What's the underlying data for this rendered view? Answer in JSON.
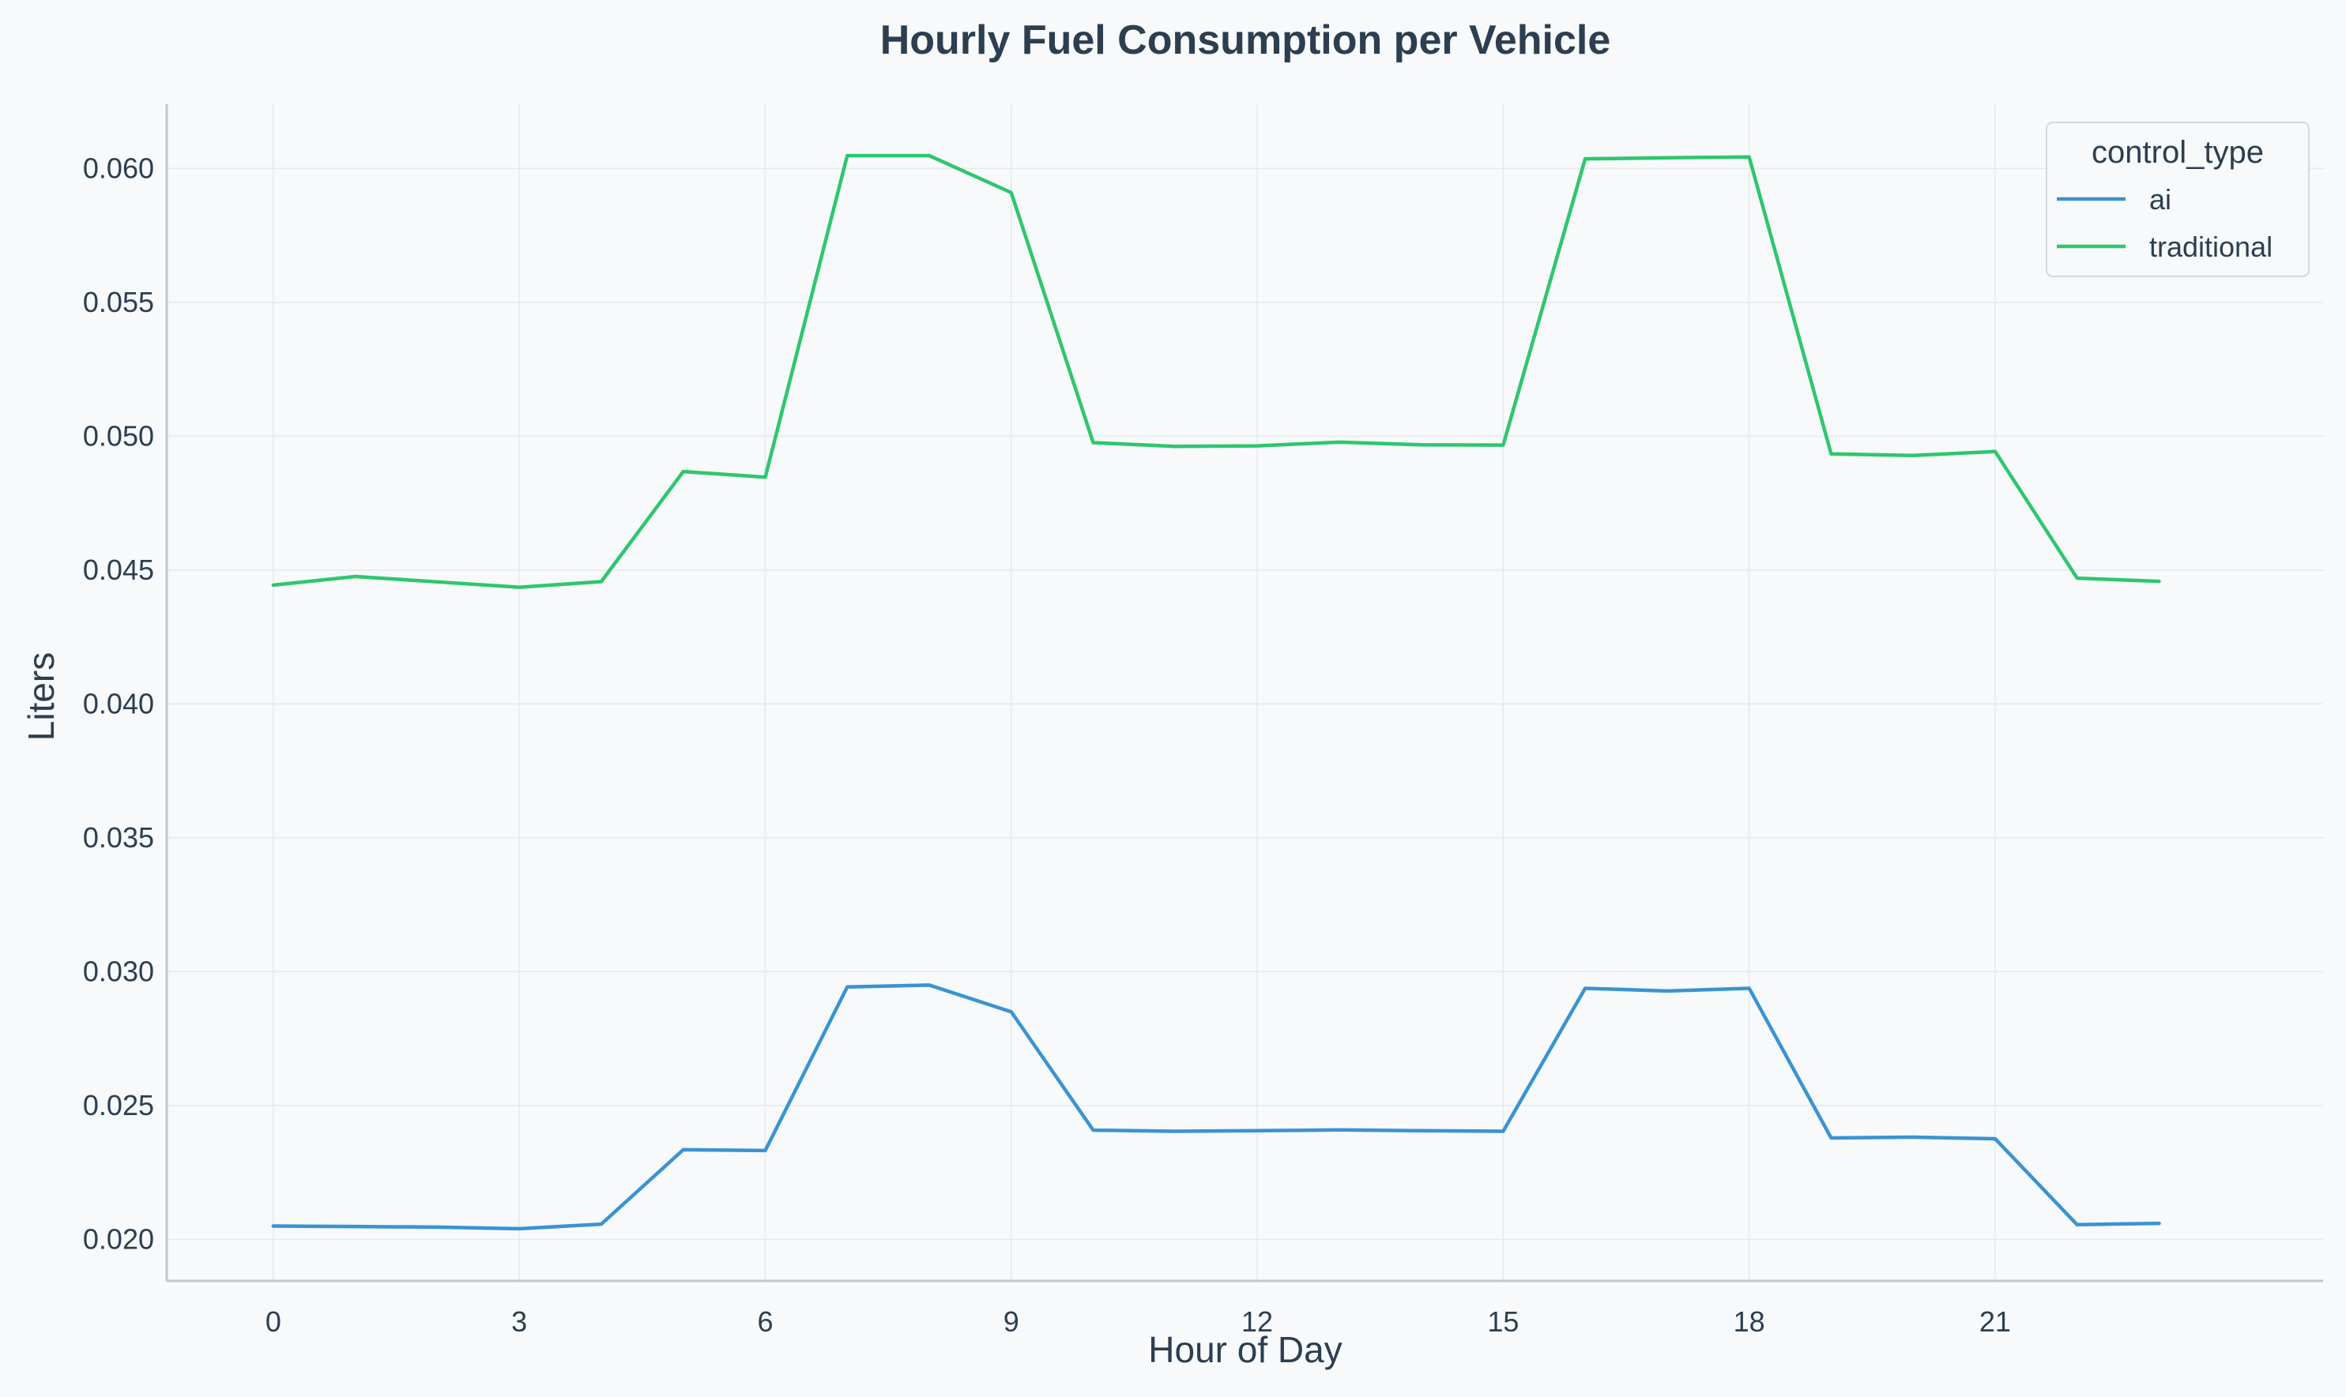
{
  "chart_data": {
    "type": "line",
    "title": "Hourly Fuel Consumption per Vehicle",
    "xlabel": "Hour of Day",
    "ylabel": "Liters",
    "xlim": [
      -1.3,
      25.0
    ],
    "ylim": [
      0.01845,
      0.0624
    ],
    "x_ticks": [
      0,
      3,
      6,
      9,
      12,
      15,
      18,
      21
    ],
    "y_ticks": [
      0.02,
      0.025,
      0.03,
      0.035,
      0.04,
      0.045,
      0.05,
      0.055,
      0.06
    ],
    "y_tick_labels": [
      "0.020",
      "0.025",
      "0.030",
      "0.035",
      "0.040",
      "0.045",
      "0.050",
      "0.055",
      "0.060"
    ],
    "grid": true,
    "legend": {
      "title": "control_type",
      "placement": "top-right"
    },
    "x": [
      0,
      1,
      2,
      3,
      4,
      5,
      6,
      7,
      8,
      9,
      10,
      11,
      12,
      13,
      14,
      15,
      16,
      17,
      18,
      19,
      20,
      21,
      22,
      23
    ],
    "series": [
      {
        "name": "ai",
        "color": "#3a93d2",
        "values": [
          0.0205,
          0.02048,
          0.02046,
          0.0204,
          0.02057,
          0.02335,
          0.02332,
          0.02943,
          0.0295,
          0.0285,
          0.02408,
          0.02404,
          0.02406,
          0.02409,
          0.02406,
          0.02404,
          0.02938,
          0.02928,
          0.02938,
          0.02379,
          0.02382,
          0.02376,
          0.02055,
          0.0206
        ]
      },
      {
        "name": "traditional",
        "color": "#2ec66f",
        "values": [
          0.04444,
          0.04476,
          0.04456,
          0.04436,
          0.04457,
          0.04868,
          0.04847,
          0.06048,
          0.06048,
          0.0591,
          0.04976,
          0.04962,
          0.04964,
          0.04978,
          0.04968,
          0.04967,
          0.06036,
          0.0604,
          0.06043,
          0.04934,
          0.04928,
          0.04943,
          0.0447,
          0.04458
        ]
      }
    ]
  }
}
